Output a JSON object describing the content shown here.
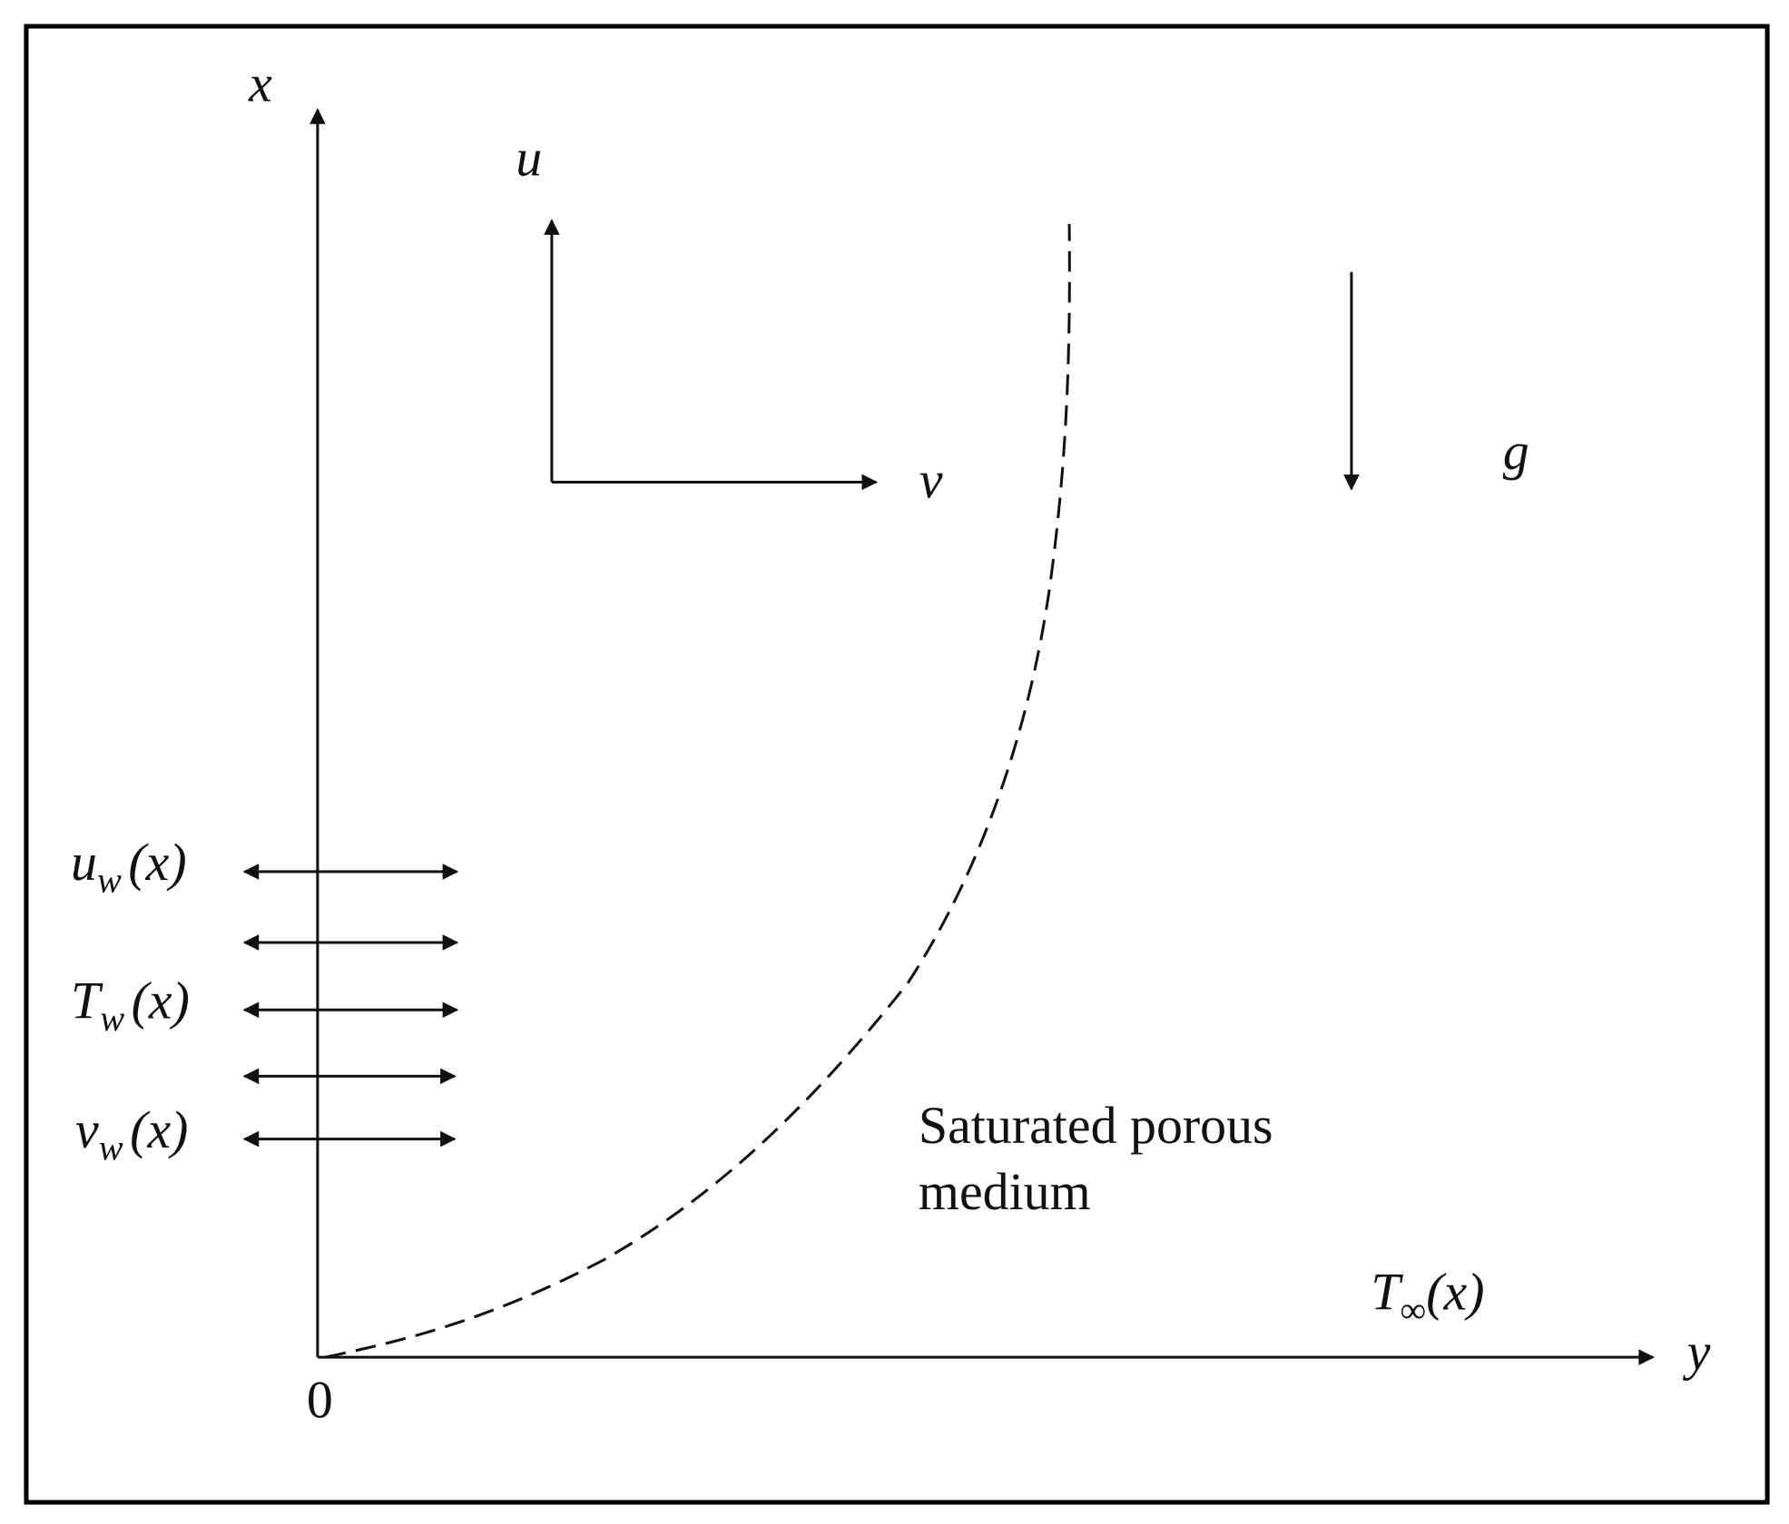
{
  "axes": {
    "vertical": "x",
    "horizontal": "y",
    "origin": "0"
  },
  "velocity": {
    "vertical": "u",
    "horizontal": "v"
  },
  "gravity": "g",
  "wall_labels": [
    {
      "main": "u",
      "sub": "w",
      "arg": "(x)"
    },
    {
      "main": "T",
      "sub": "w",
      "arg": "(x)"
    },
    {
      "main": "v",
      "sub": "w",
      "arg": "(x)"
    }
  ],
  "ambient": {
    "main": "T",
    "sub": "∞",
    "arg": "(x)"
  },
  "region": [
    "Saturated porous",
    "medium"
  ]
}
